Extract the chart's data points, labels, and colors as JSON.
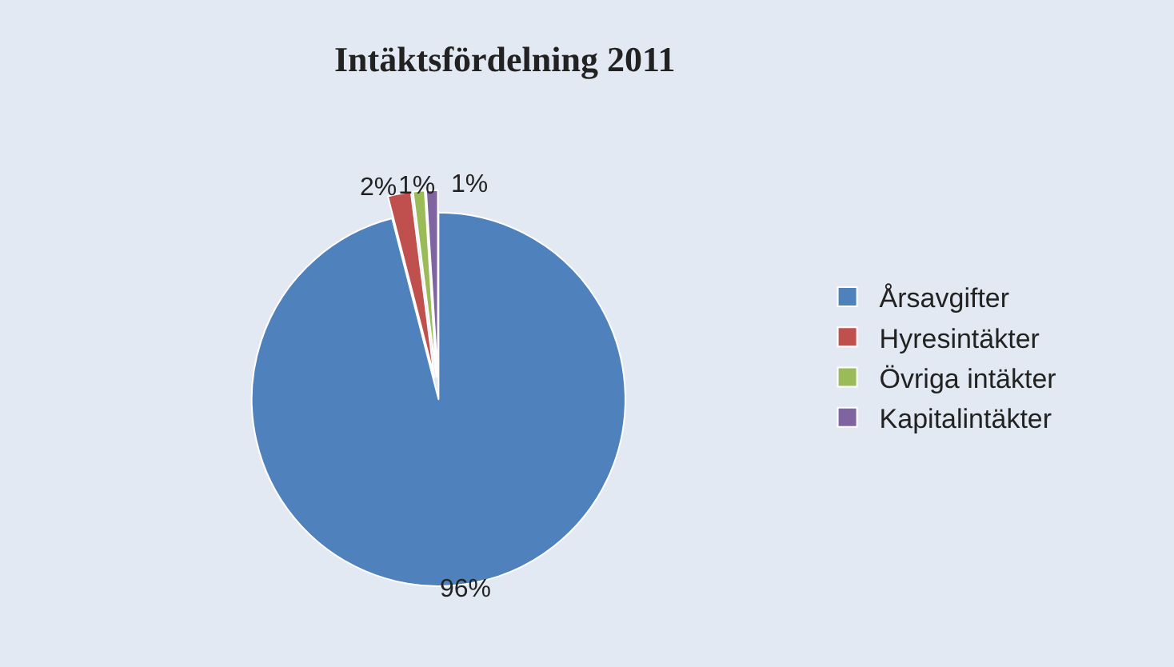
{
  "chart_data": {
    "type": "pie",
    "title": "Intäktsfördelning 2011",
    "categories": [
      "Årsavgifter",
      "Hyresintäkter",
      "Övriga intäkter",
      "Kapitalintäkter"
    ],
    "values": [
      96,
      2,
      1,
      1
    ],
    "colors": [
      "#4f81bd",
      "#c0504d",
      "#9bbb59",
      "#8064a2"
    ],
    "value_labels": [
      "96%",
      "2%",
      "1%",
      "1%"
    ],
    "legend": "right"
  }
}
